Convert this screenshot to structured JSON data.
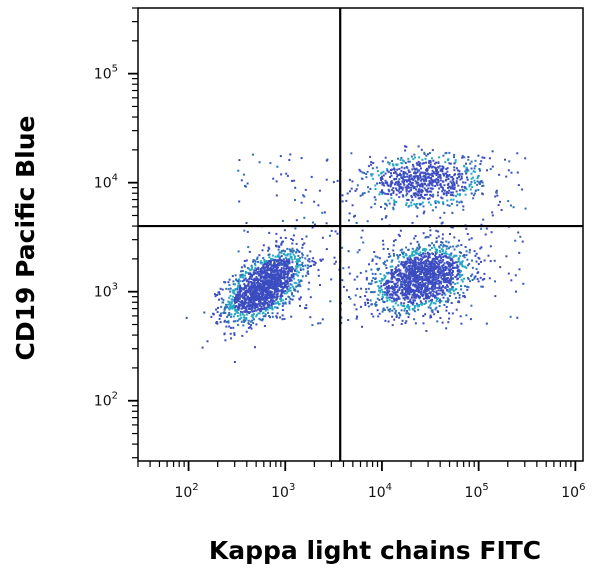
{
  "chart_data": {
    "type": "scatter",
    "style": "flow-cytometry density dot plot with quadrant gates",
    "xlabel": "Kappa light chains FITC",
    "ylabel": "CD19 Pacific Blue",
    "x_scale": "log",
    "y_scale": "log",
    "xlim": [
      30,
      1200000
    ],
    "ylim": [
      28,
      400000
    ],
    "x_ticks": [
      {
        "base": "10",
        "exp": "2",
        "value": 100
      },
      {
        "base": "10",
        "exp": "3",
        "value": 1000
      },
      {
        "base": "10",
        "exp": "4",
        "value": 10000
      },
      {
        "base": "10",
        "exp": "5",
        "value": 100000
      },
      {
        "base": "10",
        "exp": "6",
        "value": 1000000
      }
    ],
    "y_ticks": [
      {
        "base": "10",
        "exp": "2",
        "value": 100
      },
      {
        "base": "10",
        "exp": "3",
        "value": 1000
      },
      {
        "base": "10",
        "exp": "4",
        "value": 10000
      },
      {
        "base": "10",
        "exp": "5",
        "value": 100000
      }
    ],
    "quadrant_gates": {
      "x": 3700,
      "y": 4000
    },
    "populations": [
      {
        "center_x": 600,
        "center_y": 1150,
        "spread_x_log": 0.2,
        "spread_y_log": 0.16,
        "corr": 0.55,
        "relative_size": 1.0,
        "peak_color": "#e81c1c"
      },
      {
        "center_x": 25000,
        "center_y": 1350,
        "spread_x_log": 0.25,
        "spread_y_log": 0.15,
        "corr": 0.3,
        "relative_size": 0.95,
        "peak_color": "#9cd23c"
      },
      {
        "center_x": 26000,
        "center_y": 10500,
        "spread_x_log": 0.3,
        "spread_y_log": 0.12,
        "corr": 0.1,
        "relative_size": 0.45,
        "peak_color": "#2e6fb0"
      }
    ],
    "density_colors": [
      "#3b4cc0",
      "#2f6fb6",
      "#25a8c4",
      "#3cc36f",
      "#a5d22c",
      "#f2d21f",
      "#f07a1a",
      "#e41a1c"
    ],
    "grid": false
  }
}
